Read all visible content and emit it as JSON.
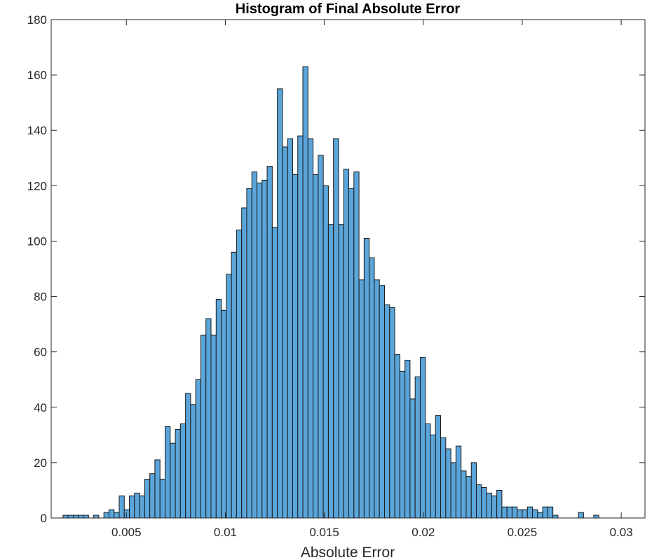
{
  "chart_data": {
    "type": "bar",
    "title": "Histogram of Final Absolute Error",
    "xlabel": "Absolute Error",
    "ylabel": "",
    "xlim": [
      0.0012,
      0.0312
    ],
    "ylim": [
      0,
      180
    ],
    "xticks": [
      0.005,
      0.01,
      0.015,
      0.02,
      0.025,
      0.03
    ],
    "xtick_labels": [
      "0.005",
      "0.01",
      "0.015",
      "0.02",
      "0.025",
      "0.03"
    ],
    "yticks": [
      0,
      20,
      40,
      60,
      80,
      100,
      120,
      140,
      160,
      180
    ],
    "ytick_labels": [
      "0",
      "20",
      "40",
      "60",
      "80",
      "100",
      "120",
      "140",
      "160",
      "180"
    ],
    "grid": false,
    "bar_color": "#5aa5da",
    "edge_color": "#1a1a1a",
    "bin_start": 0.0018,
    "bin_width": 0.0002578,
    "values": [
      1,
      1,
      1,
      1,
      1,
      0,
      1,
      0,
      2,
      3,
      2,
      8,
      3,
      8,
      9,
      8,
      14,
      16,
      21,
      14,
      33,
      27,
      32,
      34,
      45,
      41,
      50,
      66,
      72,
      66,
      79,
      75,
      88,
      96,
      104,
      112,
      119,
      125,
      121,
      122,
      127,
      105,
      155,
      134,
      137,
      124,
      138,
      163,
      137,
      124,
      131,
      120,
      106,
      137,
      106,
      126,
      119,
      125,
      86,
      101,
      94,
      86,
      84,
      77,
      76,
      59,
      53,
      57,
      43,
      51,
      58,
      34,
      30,
      37,
      29,
      25,
      20,
      26,
      17,
      15,
      20,
      12,
      11,
      9,
      8,
      10,
      4,
      4,
      4,
      3,
      3,
      4,
      3,
      2,
      4,
      4,
      1,
      0,
      0,
      0,
      0,
      2,
      0,
      0,
      1
    ]
  }
}
